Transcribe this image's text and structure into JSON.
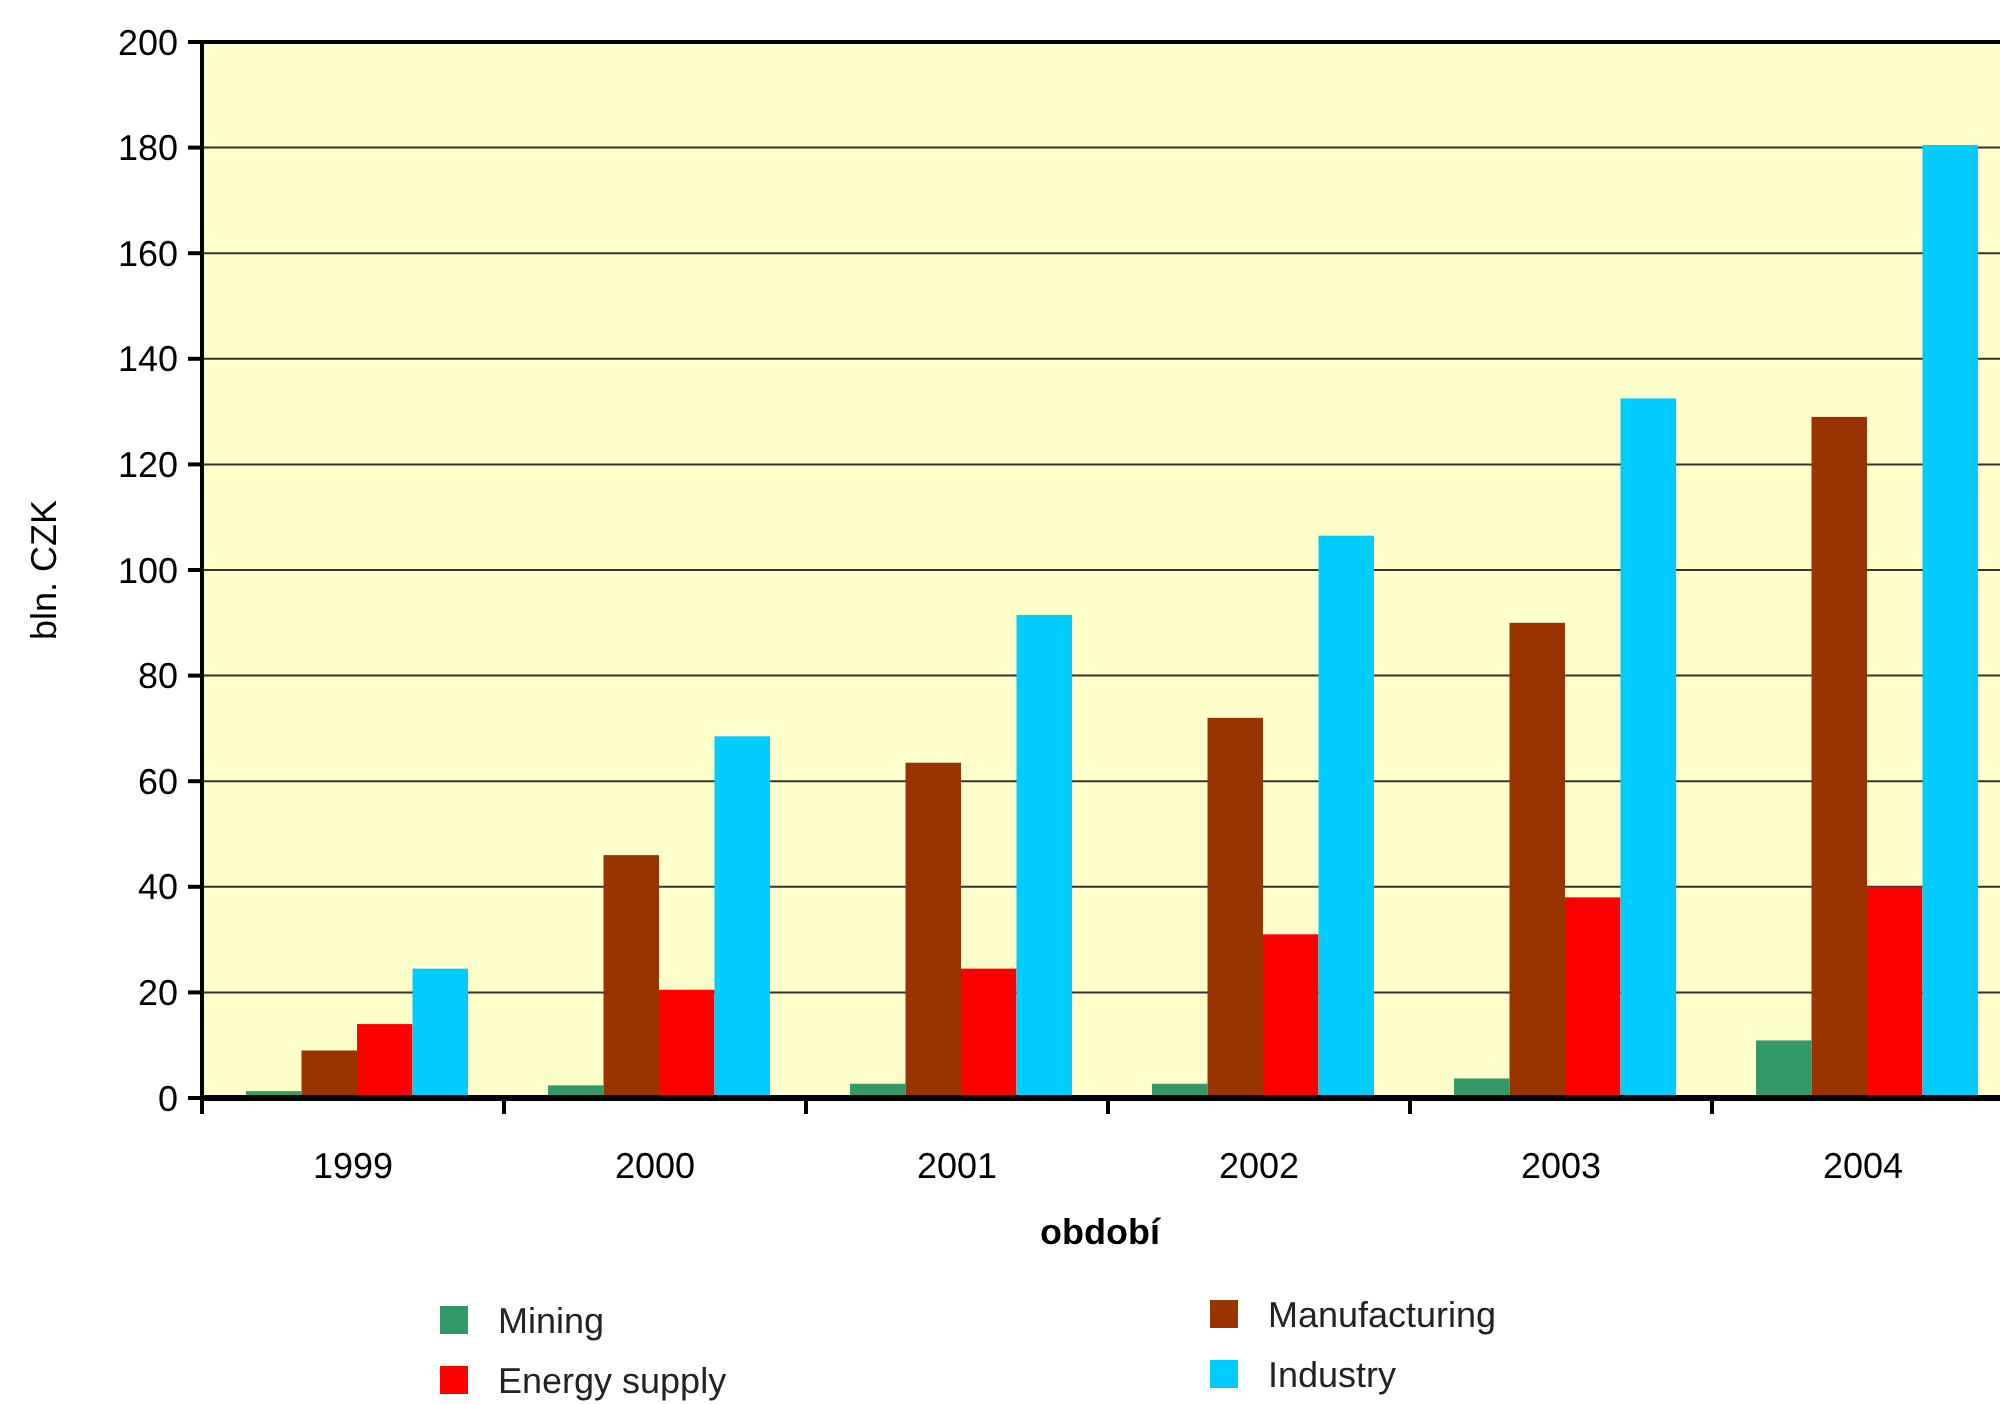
{
  "chart_data": {
    "type": "bar",
    "xlabel": "období",
    "ylabel": "bln. CZK",
    "categories": [
      "1999",
      "2000",
      "2001",
      "2002",
      "2003",
      "2004"
    ],
    "series": [
      {
        "name": "Mining",
        "color": "#339966",
        "values": [
          1.3,
          2.4,
          2.7,
          2.7,
          3.7,
          10.9
        ]
      },
      {
        "name": "Manufacturing",
        "color": "#993300",
        "values": [
          9,
          46,
          63.5,
          72,
          90,
          129
        ]
      },
      {
        "name": "Energy supply",
        "color": "#ff0000",
        "values": [
          14,
          20.5,
          24.5,
          31,
          38,
          40
        ]
      },
      {
        "name": "Industry",
        "color": "#00ccff",
        "values": [
          24.5,
          68.5,
          91.5,
          106.5,
          132.5,
          180.5
        ]
      }
    ],
    "ylim": [
      0,
      200
    ],
    "yticks": [
      0,
      20,
      40,
      60,
      80,
      100,
      120,
      140,
      160,
      180,
      200
    ],
    "grid": "y",
    "legend": "bottom"
  }
}
